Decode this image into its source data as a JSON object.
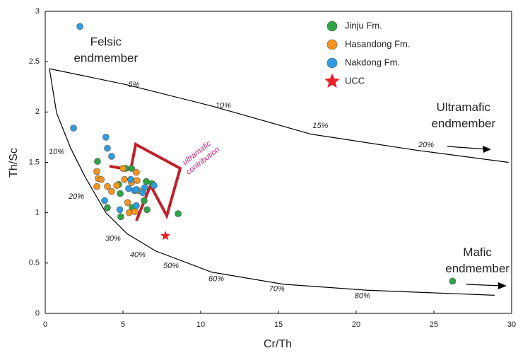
{
  "chart_data": {
    "type": "scatter",
    "xlabel": "Cr/Th",
    "ylabel": "Th/Sc",
    "xlim": [
      0,
      30
    ],
    "ylim": [
      0,
      3
    ],
    "xticks": [
      0,
      5,
      10,
      15,
      20,
      25,
      30
    ],
    "yticks": [
      0,
      0.5,
      1,
      1.5,
      2,
      2.5,
      3
    ],
    "series": [
      {
        "name": "Jinju Fm.",
        "color": "#2ca444",
        "marker": "circle",
        "x": [
          3.36,
          4.0,
          4.82,
          4.86,
          5.18,
          5.55,
          5.6,
          6.36,
          6.5,
          6.55,
          6.86,
          8.55,
          26.2,
          4.73
        ],
        "y": [
          1.51,
          1.05,
          1.19,
          0.96,
          1.44,
          1.44,
          1.05,
          1.12,
          1.31,
          1.03,
          1.29,
          0.99,
          0.32,
          1.28
        ]
      },
      {
        "name": "Hasandong Fm.",
        "color": "#f7941d",
        "marker": "circle",
        "x": [
          3.32,
          3.4,
          3.32,
          3.6,
          4.0,
          4.27,
          4.6,
          5.0,
          5.1,
          5.3,
          5.4,
          5.55,
          5.77,
          5.86,
          5.9,
          6.0
        ],
        "y": [
          1.41,
          1.34,
          1.26,
          1.33,
          1.26,
          1.21,
          1.27,
          1.44,
          1.33,
          1.1,
          1.0,
          1.3,
          1.01,
          1.4,
          1.32,
          1.22
        ]
      },
      {
        "name": "Nakdong Fm.",
        "color": "#2e9ee0",
        "marker": "circle",
        "x": [
          2.23,
          1.82,
          3.9,
          4.0,
          4.27,
          3.82,
          4.8,
          5.36,
          5.5,
          5.73,
          5.86,
          6.27,
          6.4,
          7.0,
          5.86
        ],
        "y": [
          2.85,
          1.84,
          1.75,
          1.64,
          1.56,
          1.12,
          1.03,
          1.24,
          1.33,
          1.22,
          1.23,
          1.2,
          1.25,
          1.27,
          1.07
        ]
      },
      {
        "name": "UCC",
        "color": "#e8202a",
        "marker": "star",
        "x": [
          7.73
        ],
        "y": [
          0.77
        ]
      }
    ],
    "curves": [
      {
        "color": "#000000",
        "x": [
          0.27,
          5.27,
          10.7,
          17.1,
          23.9,
          29.8
        ],
        "y": [
          2.43,
          2.27,
          2.06,
          1.78,
          1.62,
          1.5
        ]
      },
      {
        "color": "#000000",
        "x": [
          0.27,
          0.73,
          1.64,
          2.55,
          3.9,
          5.27,
          7.1,
          10.7,
          15.3,
          20.7,
          28.9
        ],
        "y": [
          2.43,
          1.99,
          1.64,
          1.36,
          1.0,
          0.79,
          0.62,
          0.41,
          0.29,
          0.23,
          0.18
        ]
      }
    ],
    "curve_labels": [
      {
        "text": "5%",
        "x": 5.7,
        "y": 2.27
      },
      {
        "text": "10%",
        "x": 11.45,
        "y": 2.06
      },
      {
        "text": "15%",
        "x": 17.7,
        "y": 1.86
      },
      {
        "text": "20%",
        "x": 24.5,
        "y": 1.67
      },
      {
        "text": "10%",
        "x": 0.73,
        "y": 1.6
      },
      {
        "text": "20%",
        "x": 2.0,
        "y": 1.16
      },
      {
        "text": "30%",
        "x": 4.36,
        "y": 0.74
      },
      {
        "text": "40%",
        "x": 5.95,
        "y": 0.58
      },
      {
        "text": "50%",
        "x": 8.1,
        "y": 0.47
      },
      {
        "text": "60%",
        "x": 11.0,
        "y": 0.34
      },
      {
        "text": "70%",
        "x": 14.9,
        "y": 0.24
      },
      {
        "text": "80%",
        "x": 20.4,
        "y": 0.17
      }
    ],
    "annotations": [
      {
        "text": "Felsic",
        "x": 3.9,
        "y": 2.69
      },
      {
        "text": "endmember",
        "x": 3.9,
        "y": 2.53
      },
      {
        "text": "Ultramafic",
        "x": 26.9,
        "y": 2.04
      },
      {
        "text": "endmember",
        "x": 26.9,
        "y": 1.88
      },
      {
        "text": "Mafic",
        "x": 27.8,
        "y": 0.6
      },
      {
        "text": "endmember",
        "x": 27.8,
        "y": 0.44
      }
    ],
    "contribution_label": [
      "ultramafic",
      "contribution"
    ]
  }
}
